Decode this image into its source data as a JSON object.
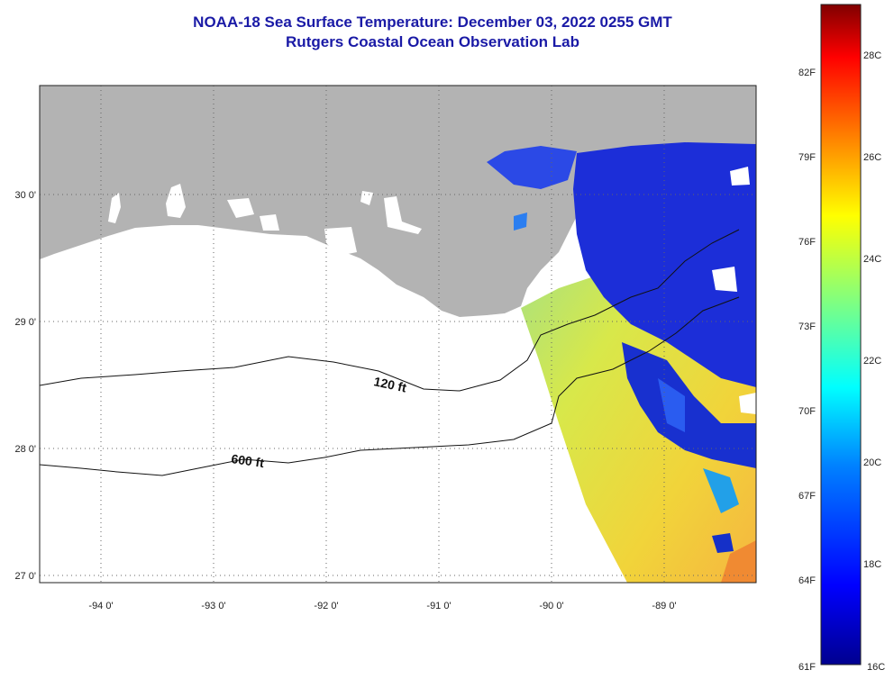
{
  "header": {
    "title": "NOAA-18 Sea Surface Temperature:  December 03, 2022 0255 GMT",
    "subtitle": "Rutgers Coastal Ocean Observation Lab"
  },
  "map": {
    "lon_ticks": [
      "-94 0'",
      "-93 0'",
      "-92 0'",
      "-91 0'",
      "-90 0'",
      "-89 0'"
    ],
    "lat_ticks": [
      "30 0'",
      "29 0'",
      "28 0'",
      "27 0'"
    ],
    "contours": [
      {
        "label": "120 ft"
      },
      {
        "label": "600 ft"
      }
    ],
    "colors": {
      "land": "#b3b3b3",
      "no_data": "#ffffff"
    }
  },
  "colorbar": {
    "fahrenheit_ticks": [
      "82F",
      "79F",
      "76F",
      "73F",
      "70F",
      "67F",
      "64F",
      "61F"
    ],
    "celsius_ticks": [
      "28C",
      "26C",
      "24C",
      "22C",
      "20C",
      "18C",
      "16C"
    ],
    "colors": [
      "#00008f",
      "#0000ff",
      "#0080ff",
      "#00ffff",
      "#80ff80",
      "#ffff00",
      "#ff8000",
      "#ff0000",
      "#800000"
    ]
  }
}
